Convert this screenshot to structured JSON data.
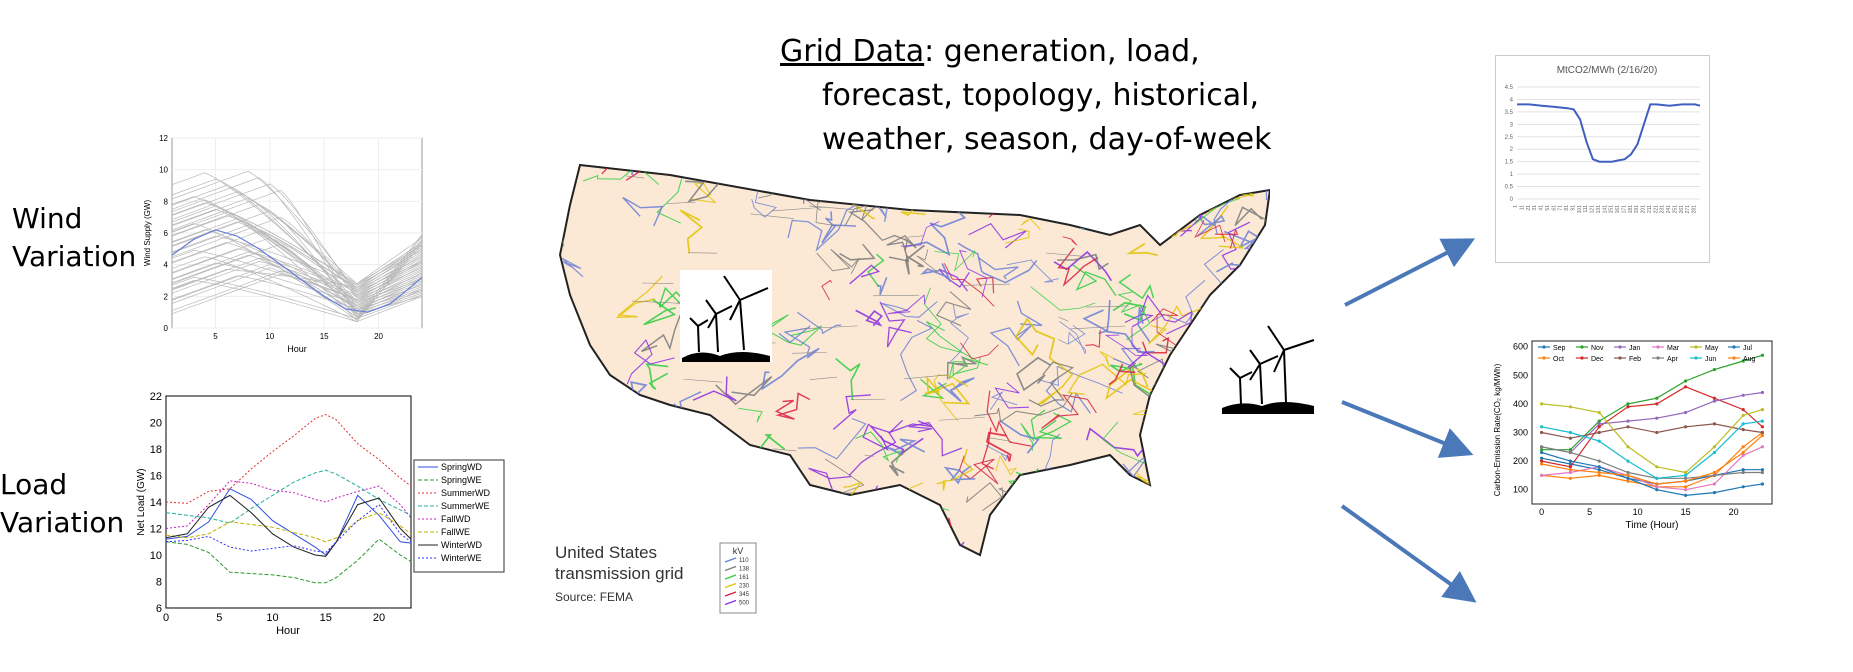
{
  "labels": {
    "wind": [
      "Wind",
      "Variation"
    ],
    "load": [
      "Load",
      "Variation"
    ]
  },
  "title": {
    "underlined": "Grid Data",
    "line1_rest": ": generation, load,",
    "line2": "forecast, topology, historical,",
    "line3": "weather, season, day-of-week"
  },
  "map": {
    "caption_line1": "United States",
    "caption_line2": "transmission grid",
    "source": "Source: FEMA",
    "legend_title": "kV",
    "legend_items": [
      "110",
      "138",
      "161",
      "230",
      "345",
      "500"
    ],
    "legend_colors": [
      "#6a7fd6",
      "#7a7a7a",
      "#2ecc40",
      "#e3c200",
      "#d81f3c",
      "#8a2be2"
    ]
  },
  "chart_data": [
    {
      "type": "line",
      "id": "wind",
      "xlabel": "Hour",
      "ylabel": "Wind Supply (GW)",
      "xticks": [
        "5",
        "10",
        "15",
        "20"
      ],
      "yticks": [
        "0",
        "2",
        "4",
        "6",
        "8",
        "10",
        "12"
      ],
      "xlim": [
        1,
        24
      ],
      "ylim": [
        0,
        12
      ],
      "highlight_series": {
        "x": [
          1,
          3,
          5,
          7,
          9,
          11,
          13,
          15,
          17,
          19,
          21,
          23,
          24
        ],
        "y": [
          4.6,
          5.6,
          6.2,
          5.8,
          5.0,
          4.0,
          3.0,
          2.0,
          1.2,
          1.0,
          1.5,
          2.6,
          3.2
        ]
      }
    },
    {
      "type": "line",
      "id": "load",
      "xlabel": "Hour",
      "ylabel": "Net Load (GW)",
      "xticks": [
        "0",
        "5",
        "10",
        "15",
        "20"
      ],
      "yticks": [
        "6",
        "8",
        "10",
        "12",
        "14",
        "16",
        "18",
        "20",
        "22"
      ],
      "xlim": [
        0,
        23
      ],
      "ylim": [
        6,
        22
      ],
      "x": [
        0,
        2,
        4,
        6,
        8,
        10,
        12,
        14,
        15,
        16,
        18,
        20,
        22,
        23
      ],
      "series": [
        {
          "name": "SpringWD",
          "color": "#3050e0",
          "dash": "",
          "values": [
            11.2,
            11.4,
            12.5,
            15.0,
            14.2,
            12.6,
            11.6,
            10.6,
            10.0,
            11.0,
            14.5,
            13.0,
            11.0,
            10.9
          ]
        },
        {
          "name": "SpringWE",
          "color": "#2a9a2a",
          "dash": "4 2",
          "values": [
            11.0,
            10.8,
            10.2,
            8.7,
            8.6,
            8.5,
            8.3,
            7.9,
            7.9,
            8.3,
            9.6,
            11.2,
            10.0,
            9.5
          ]
        },
        {
          "name": "SummerWD",
          "color": "#e03030",
          "dash": "2 2",
          "values": [
            14.0,
            13.9,
            14.8,
            15.0,
            16.5,
            17.8,
            19.0,
            20.3,
            20.6,
            20.2,
            18.4,
            17.2,
            15.8,
            15.2
          ]
        },
        {
          "name": "SummerWE",
          "color": "#20b0a0",
          "dash": "4 2",
          "values": [
            13.2,
            13.0,
            12.8,
            12.4,
            13.5,
            14.5,
            15.5,
            16.2,
            16.4,
            16.1,
            15.2,
            14.2,
            13.4,
            13.0
          ]
        },
        {
          "name": "FallWD",
          "color": "#c020c0",
          "dash": "2 2",
          "values": [
            12.0,
            12.2,
            13.8,
            15.6,
            15.4,
            14.9,
            14.7,
            14.2,
            14.0,
            14.3,
            14.8,
            15.2,
            13.8,
            12.8
          ]
        },
        {
          "name": "FallWE",
          "color": "#c0b000",
          "dash": "4 2",
          "values": [
            11.5,
            11.3,
            11.6,
            12.5,
            12.3,
            12.1,
            11.7,
            11.3,
            11.0,
            11.3,
            12.6,
            13.2,
            12.2,
            11.6
          ]
        },
        {
          "name": "WinterWD",
          "color": "#202020",
          "dash": "",
          "values": [
            11.3,
            11.6,
            13.6,
            14.5,
            13.2,
            11.6,
            10.6,
            10.0,
            9.9,
            11.0,
            13.8,
            14.3,
            12.0,
            11.2
          ]
        },
        {
          "name": "WinterWE",
          "color": "#3030ff",
          "dash": "2 2",
          "values": [
            11.0,
            11.1,
            11.4,
            10.6,
            10.3,
            10.5,
            10.7,
            10.3,
            10.2,
            11.0,
            12.6,
            13.8,
            11.6,
            11.0
          ]
        }
      ]
    },
    {
      "type": "line",
      "id": "co2",
      "title": "MtCO2/MWh (2/16/20)",
      "yticks": [
        "0",
        "0.5",
        "1",
        "1.5",
        "2",
        "2.5",
        "3",
        "3.5",
        "4",
        "4.5"
      ],
      "xticks": [
        "1",
        "11",
        "21",
        "31",
        "41",
        "51",
        "61",
        "71",
        "81",
        "91",
        "101",
        "111",
        "121",
        "131",
        "141",
        "151",
        "161",
        "171",
        "181",
        "191",
        "201",
        "211",
        "221",
        "231",
        "241",
        "251",
        "261",
        "271",
        "281"
      ],
      "xlim": [
        1,
        288
      ],
      "ylim": [
        0,
        4.5
      ],
      "x": [
        1,
        20,
        40,
        60,
        80,
        90,
        100,
        110,
        120,
        130,
        140,
        150,
        160,
        170,
        180,
        190,
        200,
        210,
        220,
        240,
        260,
        280,
        288
      ],
      "values": [
        3.8,
        3.8,
        3.75,
        3.7,
        3.65,
        3.6,
        3.2,
        2.3,
        1.6,
        1.5,
        1.5,
        1.5,
        1.55,
        1.6,
        1.8,
        2.2,
        3.0,
        3.8,
        3.8,
        3.75,
        3.8,
        3.8,
        3.75
      ],
      "color": "#4060c0"
    },
    {
      "type": "line",
      "id": "carbon",
      "xlabel": "Time (Hour)",
      "ylabel": "Carbon-Emission Rate(CO₂ kg/MWh)",
      "xticks": [
        "0",
        "5",
        "10",
        "15",
        "20"
      ],
      "yticks": [
        "100",
        "200",
        "300",
        "400",
        "500",
        "600"
      ],
      "xlim": [
        -1,
        24
      ],
      "ylim": [
        50,
        620
      ],
      "x": [
        0,
        3,
        6,
        9,
        12,
        15,
        18,
        21,
        23
      ],
      "series": [
        {
          "name": "Sep",
          "color": "#1f77b4",
          "values": [
            210,
            190,
            170,
            140,
            120,
            130,
            150,
            170,
            170
          ]
        },
        {
          "name": "Oct",
          "color": "#ff7f0e",
          "values": [
            150,
            140,
            150,
            130,
            110,
            110,
            150,
            250,
            300
          ]
        },
        {
          "name": "Nov",
          "color": "#2ca02c",
          "values": [
            240,
            240,
            340,
            400,
            420,
            480,
            520,
            550,
            570
          ]
        },
        {
          "name": "Dec",
          "color": "#d62728",
          "values": [
            200,
            180,
            320,
            390,
            400,
            460,
            420,
            380,
            320
          ]
        },
        {
          "name": "Jan",
          "color": "#9467bd",
          "values": [
            250,
            230,
            330,
            340,
            350,
            370,
            410,
            430,
            440
          ]
        },
        {
          "name": "Feb",
          "color": "#8c564b",
          "values": [
            300,
            280,
            300,
            320,
            300,
            320,
            330,
            310,
            300
          ]
        },
        {
          "name": "Mar",
          "color": "#e377c2",
          "values": [
            150,
            160,
            180,
            150,
            110,
            100,
            120,
            220,
            250
          ]
        },
        {
          "name": "Apr",
          "color": "#7f7f7f",
          "values": [
            250,
            230,
            200,
            160,
            140,
            140,
            150,
            160,
            160
          ]
        },
        {
          "name": "May",
          "color": "#bcbd22",
          "values": [
            400,
            390,
            370,
            250,
            180,
            160,
            250,
            360,
            380
          ]
        },
        {
          "name": "Jun",
          "color": "#17becf",
          "values": [
            320,
            300,
            270,
            200,
            140,
            150,
            230,
            330,
            340
          ]
        },
        {
          "name": "Jul",
          "color": "#1f77b4",
          "values": [
            230,
            200,
            180,
            140,
            100,
            80,
            90,
            110,
            120
          ]
        },
        {
          "name": "Aug",
          "color": "#ff7f0e",
          "values": [
            190,
            170,
            160,
            150,
            120,
            130,
            160,
            230,
            290
          ]
        }
      ]
    }
  ]
}
